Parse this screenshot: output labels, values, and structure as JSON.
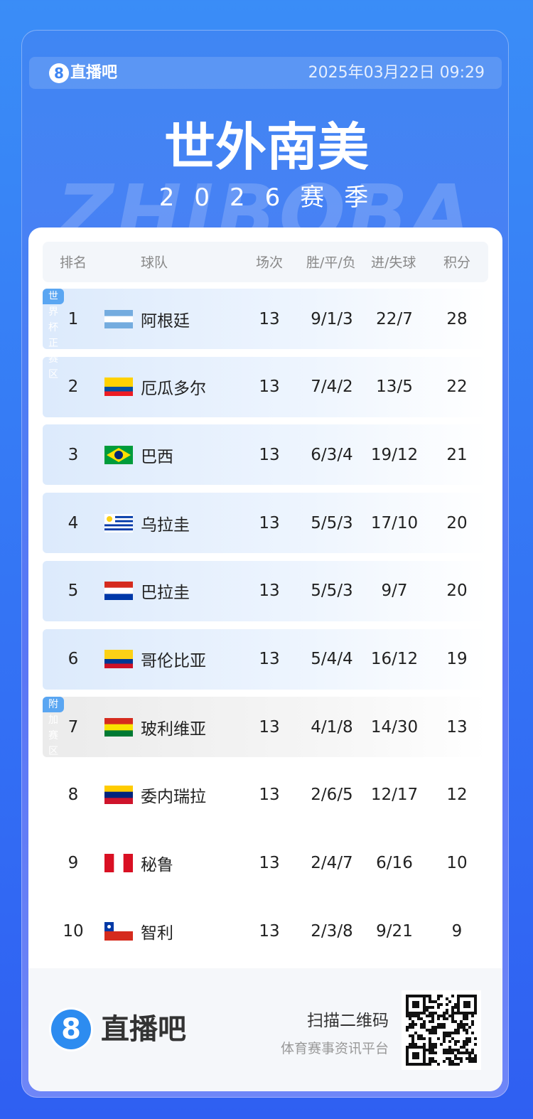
{
  "header": {
    "logo": "直播吧",
    "date": "2025年03月22日 09:29"
  },
  "title": "世外南美",
  "subtitle": "2026赛季",
  "watermark": "ZHIBOBA",
  "table": {
    "columns": [
      "排名",
      "球队",
      "场次",
      "胜/平/负",
      "进/失球",
      "积分"
    ],
    "zones": [
      {
        "label": "世界杯正赛区",
        "row": 0
      },
      {
        "label": "附加赛区",
        "row": 6
      }
    ],
    "rows": [
      [
        1,
        "阿根廷",
        13,
        "9/1/3",
        "22/7",
        28
      ],
      [
        2,
        "厄瓜多尔",
        13,
        "7/4/2",
        "13/5",
        22
      ],
      [
        3,
        "巴西",
        13,
        "6/3/4",
        "19/12",
        21
      ],
      [
        4,
        "乌拉圭",
        13,
        "5/5/3",
        "17/10",
        20
      ],
      [
        5,
        "巴拉圭",
        13,
        "5/5/3",
        "9/7",
        20
      ],
      [
        6,
        "哥伦比亚",
        13,
        "5/4/4",
        "16/12",
        19
      ],
      [
        7,
        "玻利维亚",
        13,
        "4/1/8",
        "14/30",
        13
      ],
      [
        8,
        "委内瑞拉",
        13,
        "2/6/5",
        "12/17",
        12
      ],
      [
        9,
        "秘鲁",
        13,
        "2/4/7",
        "6/16",
        10
      ],
      [
        10,
        "智利",
        13,
        "2/3/8",
        "9/21",
        9
      ]
    ]
  },
  "footer": {
    "logo": "直播吧",
    "scan": "扫描二维码",
    "tagline": "体育赛事资讯平台"
  }
}
